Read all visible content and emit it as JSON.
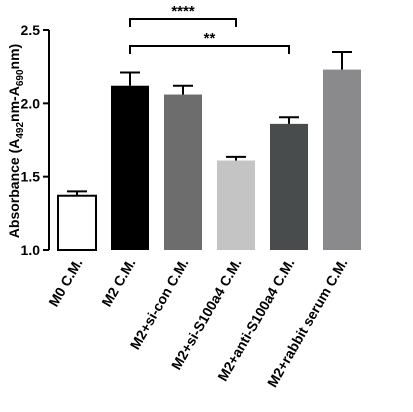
{
  "chart_data": {
    "type": "bar",
    "ylabel": {
      "main": "Absorbance (A",
      "sub1": "492",
      "mid": "nm-A",
      "sub2": "690",
      "end": "nm)"
    },
    "ylim": [
      1.0,
      2.5
    ],
    "yticks": [
      "1.0",
      "1.5",
      "2.0",
      "2.5"
    ],
    "grid": false,
    "categories": [
      "M0 C.M.",
      "M2 C.M.",
      "M2+si-con C.M.",
      "M2+si-S100a4 C.M.",
      "M2+anti-S100a4 C.M.",
      "M2+rabbit serum C.M."
    ],
    "values": [
      1.37,
      2.12,
      2.06,
      1.61,
      1.86,
      2.23
    ],
    "errors": [
      0.03,
      0.09,
      0.06,
      0.025,
      0.045,
      0.12
    ],
    "colors": {
      "fills": [
        "#ffffff",
        "#000000",
        "#6d6d6d",
        "#c4c4c4",
        "#494c4d",
        "#8a8a8c"
      ],
      "axis": "#000000"
    },
    "significance": [
      {
        "from": 1,
        "to": 3,
        "label": "****"
      },
      {
        "from": 1,
        "to": 4,
        "label": "**"
      }
    ]
  }
}
